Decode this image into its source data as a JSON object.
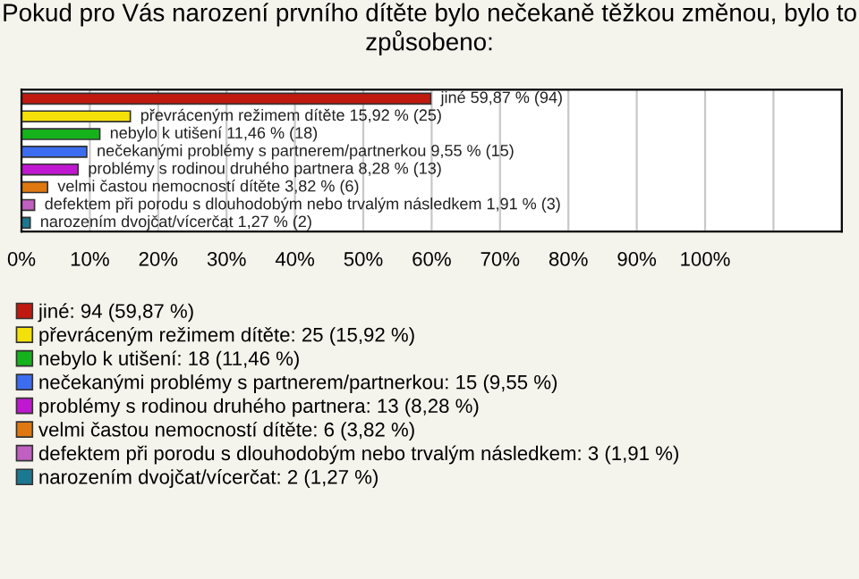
{
  "chart_data": {
    "type": "bar",
    "orientation": "horizontal",
    "title": "Pokud pro Vás narození prvního dítěte bylo nečekaně těžkou změnou, bylo to způsobeno:",
    "categories": [
      null,
      null,
      null,
      null,
      null,
      null,
      null,
      null
    ],
    "series": [
      {
        "name": "jiné: 94 (59,87 %)",
        "color": "#c0190f",
        "values": [
          59.87,
          null,
          null,
          null,
          null,
          null,
          null,
          null
        ],
        "value_labels": [
          "jiné 59,87 % (94)",
          null,
          null,
          null,
          null,
          null,
          null,
          null
        ]
      },
      {
        "name": "převráceným režimem dítěte: 25 (15,92 %)",
        "color": "#f5e10a",
        "values": [
          null,
          15.92,
          null,
          null,
          null,
          null,
          null,
          null
        ],
        "value_labels": [
          null,
          "převráceným režimem dítěte 15,92 % (25)",
          null,
          null,
          null,
          null,
          null,
          null
        ]
      },
      {
        "name": "nebylo k utišení: 18 (11,46 %)",
        "color": "#16b21c",
        "values": [
          null,
          null,
          11.46,
          null,
          null,
          null,
          null,
          null
        ],
        "value_labels": [
          null,
          null,
          "nebylo k utišení 11,46 % (18)",
          null,
          null,
          null,
          null,
          null
        ]
      },
      {
        "name": "nečekanými problémy s partnerem/partnerkou: 15 (9,55 %)",
        "color": "#3c6cf0",
        "values": [
          null,
          null,
          null,
          9.55,
          null,
          null,
          null,
          null
        ],
        "value_labels": [
          null,
          null,
          null,
          "nečekanými problémy s partnerem/partnerkou 9,55 % (15)",
          null,
          null,
          null,
          null
        ]
      },
      {
        "name": "problémy s rodinou druhého partnera: 13 (8,28 %)",
        "color": "#c018d0",
        "values": [
          null,
          null,
          null,
          null,
          8.28,
          null,
          null,
          null
        ],
        "value_labels": [
          null,
          null,
          null,
          null,
          "problémy s rodinou druhého partnera 8,28 % (13)",
          null,
          null,
          null
        ]
      },
      {
        "name": "velmi častou nemocností dítěte: 6 (3,82 %)",
        "color": "#e07810",
        "values": [
          null,
          null,
          null,
          null,
          null,
          3.82,
          null,
          null
        ],
        "value_labels": [
          null,
          null,
          null,
          null,
          null,
          "velmi častou nemocností dítěte 3,82 % (6)",
          null,
          null
        ]
      },
      {
        "name": "defektem při porodu s dlouhodobým nebo trvalým následkem: 3 (1,91 %)",
        "color": "#c060c0",
        "values": [
          null,
          null,
          null,
          null,
          null,
          null,
          1.91,
          null
        ],
        "value_labels": [
          null,
          null,
          null,
          null,
          null,
          null,
          "defektem při porodu s dlouhodobým nebo trvalým následkem 1,91 % (3)",
          null
        ]
      },
      {
        "name": "narozením dvojčat/vícerčat: 2 (1,27 %)",
        "color": "#1c7890",
        "values": [
          null,
          null,
          null,
          null,
          null,
          null,
          null,
          1.27
        ],
        "value_labels": [
          null,
          null,
          null,
          null,
          null,
          null,
          null,
          "narozením dvojčat/vícerčat 1,27 % (2)"
        ]
      }
    ],
    "xlim": [
      0,
      120
    ],
    "xticks": [
      {
        "value": 0,
        "label": "0%"
      },
      {
        "value": 10,
        "label": "10%"
      },
      {
        "value": 20,
        "label": "20%"
      },
      {
        "value": 30,
        "label": "30%"
      },
      {
        "value": 40,
        "label": "40%"
      },
      {
        "value": 50,
        "label": "50%"
      },
      {
        "value": 60,
        "label": "60%"
      },
      {
        "value": 70,
        "label": "70%"
      },
      {
        "value": 80,
        "label": "80%"
      },
      {
        "value": 90,
        "label": "90%"
      },
      {
        "value": 100,
        "label": "100%"
      },
      {
        "value": 110,
        "label": null
      }
    ],
    "grid": "x",
    "legend": "bottom"
  }
}
